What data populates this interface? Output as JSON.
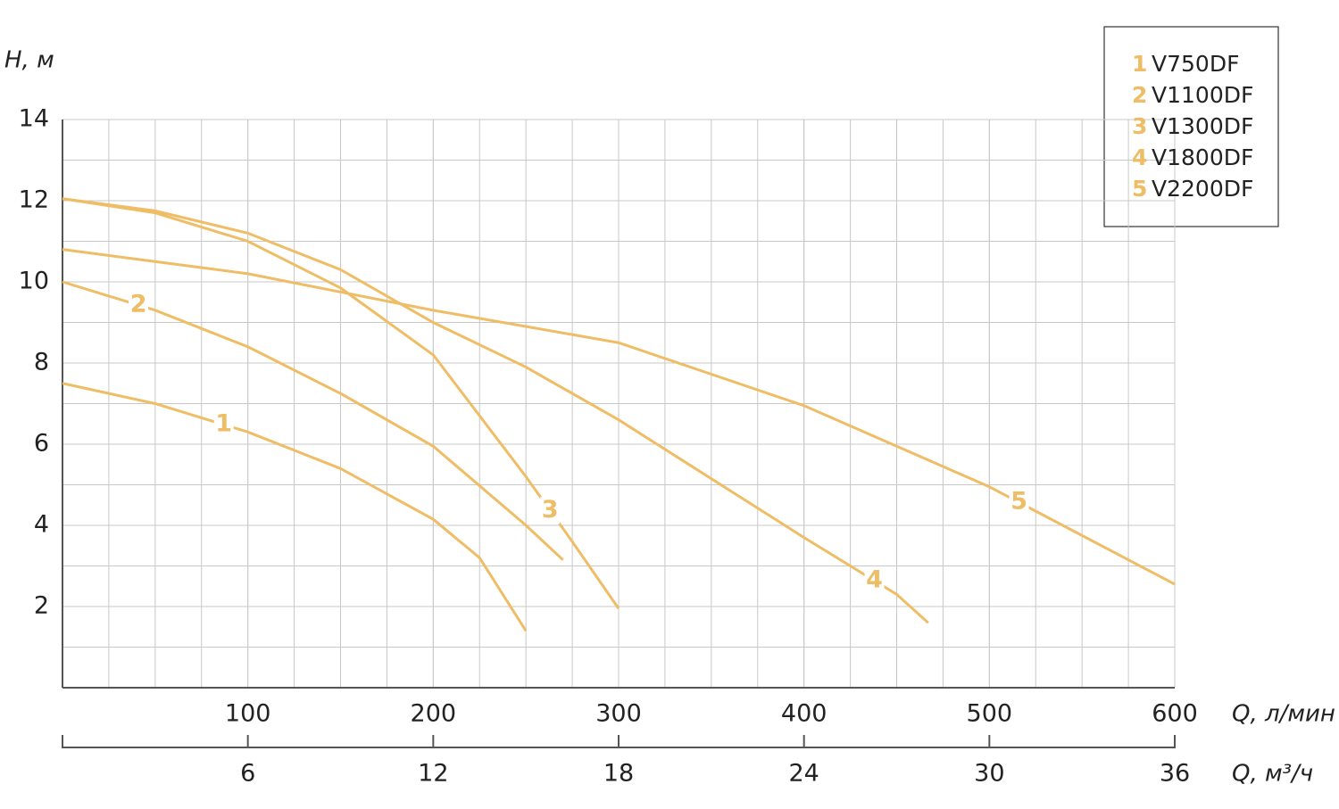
{
  "chart_data": {
    "type": "line",
    "y_label": "H, м",
    "x_label": "Q, л/мин",
    "x2_label": "Q, м³/ч",
    "xlim": [
      0,
      600
    ],
    "xticks": [
      100,
      200,
      300,
      400,
      500,
      600
    ],
    "x2lim": [
      0,
      36
    ],
    "x2ticks": [
      6,
      12,
      18,
      24,
      30,
      36
    ],
    "ylim": [
      0,
      14
    ],
    "yticks": [
      2,
      4,
      6,
      8,
      10,
      12,
      14
    ],
    "grid": true,
    "grid_subdivisions": {
      "x": 4,
      "y": 2
    },
    "legend_position": "upper right",
    "series": [
      {
        "label": "1",
        "name": "V750DF",
        "color": "#eebd66",
        "x": [
          0,
          50,
          100,
          150,
          200,
          225,
          250
        ],
        "values": [
          7.5,
          7.0,
          6.3,
          5.4,
          4.15,
          3.2,
          1.4
        ]
      },
      {
        "label": "2",
        "name": "V1100DF",
        "color": "#eebd66",
        "x": [
          0,
          50,
          100,
          150,
          200,
          250,
          270
        ],
        "values": [
          10.0,
          9.3,
          8.4,
          7.25,
          5.95,
          4.0,
          3.15
        ]
      },
      {
        "label": "3",
        "name": "V1300DF",
        "color": "#eebd66",
        "x": [
          0,
          50,
          100,
          150,
          200,
          250,
          275,
          300
        ],
        "values": [
          12.05,
          11.7,
          11.0,
          9.85,
          8.2,
          5.2,
          3.6,
          1.95
        ]
      },
      {
        "label": "4",
        "name": "V1800DF",
        "color": "#eebd66",
        "x": [
          0,
          50,
          100,
          150,
          200,
          250,
          300,
          400,
          450,
          467
        ],
        "values": [
          12.05,
          11.75,
          11.2,
          10.3,
          9.0,
          7.9,
          6.6,
          3.7,
          2.3,
          1.6
        ]
      },
      {
        "label": "5",
        "name": "V2200DF",
        "color": "#eebd66",
        "x": [
          0,
          50,
          100,
          200,
          300,
          400,
          500,
          600
        ],
        "values": [
          10.8,
          10.5,
          10.2,
          9.3,
          8.5,
          6.95,
          4.95,
          2.55
        ]
      }
    ]
  }
}
